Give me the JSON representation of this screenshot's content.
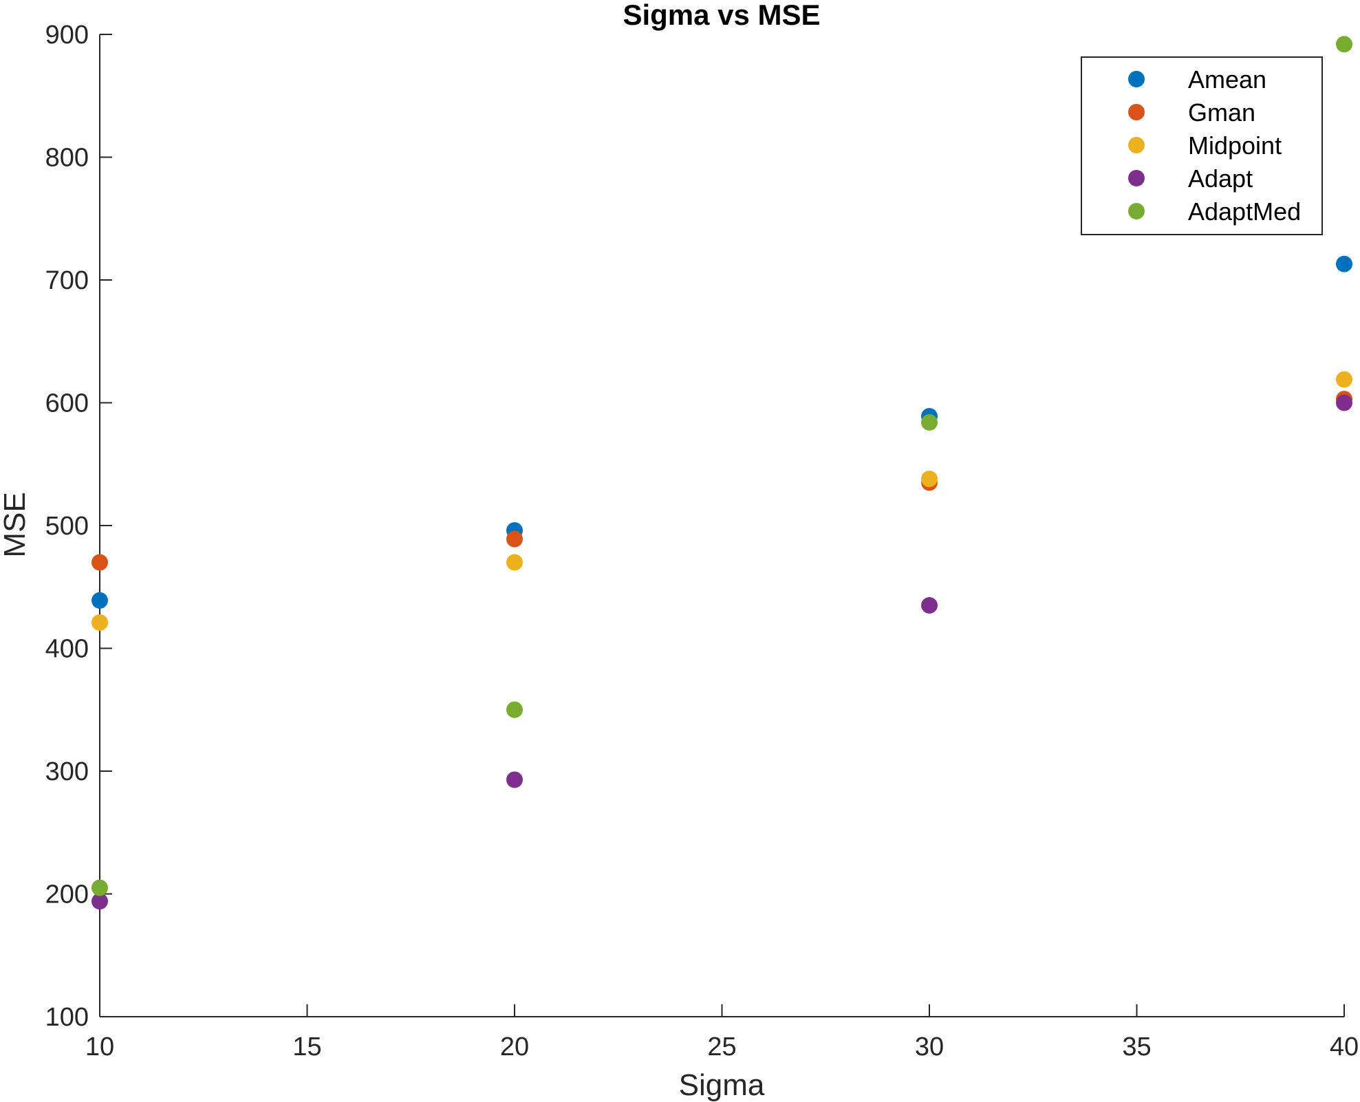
{
  "chart_data": {
    "type": "scatter",
    "title": "Sigma vs MSE",
    "xlabel": "Sigma",
    "ylabel": "MSE",
    "xlim": [
      10,
      40
    ],
    "ylim": [
      100,
      900
    ],
    "xticks": [
      10,
      15,
      20,
      25,
      30,
      35,
      40
    ],
    "yticks": [
      100,
      200,
      300,
      400,
      500,
      600,
      700,
      800,
      900
    ],
    "grid": false,
    "legend_position": "top-right",
    "x": [
      10,
      20,
      30,
      40
    ],
    "series": [
      {
        "name": "Amean",
        "color": "#0072BD",
        "values": [
          439,
          496,
          589,
          713
        ]
      },
      {
        "name": "Gman",
        "color": "#D95319",
        "values": [
          470,
          489,
          535,
          603
        ]
      },
      {
        "name": "Midpoint",
        "color": "#EDB120",
        "values": [
          421,
          470,
          538,
          619
        ]
      },
      {
        "name": "Adapt",
        "color": "#7E2F8E",
        "values": [
          194,
          293,
          435,
          600
        ]
      },
      {
        "name": "AdaptMed",
        "color": "#77AC30",
        "values": [
          205,
          350,
          584,
          892
        ]
      }
    ]
  }
}
